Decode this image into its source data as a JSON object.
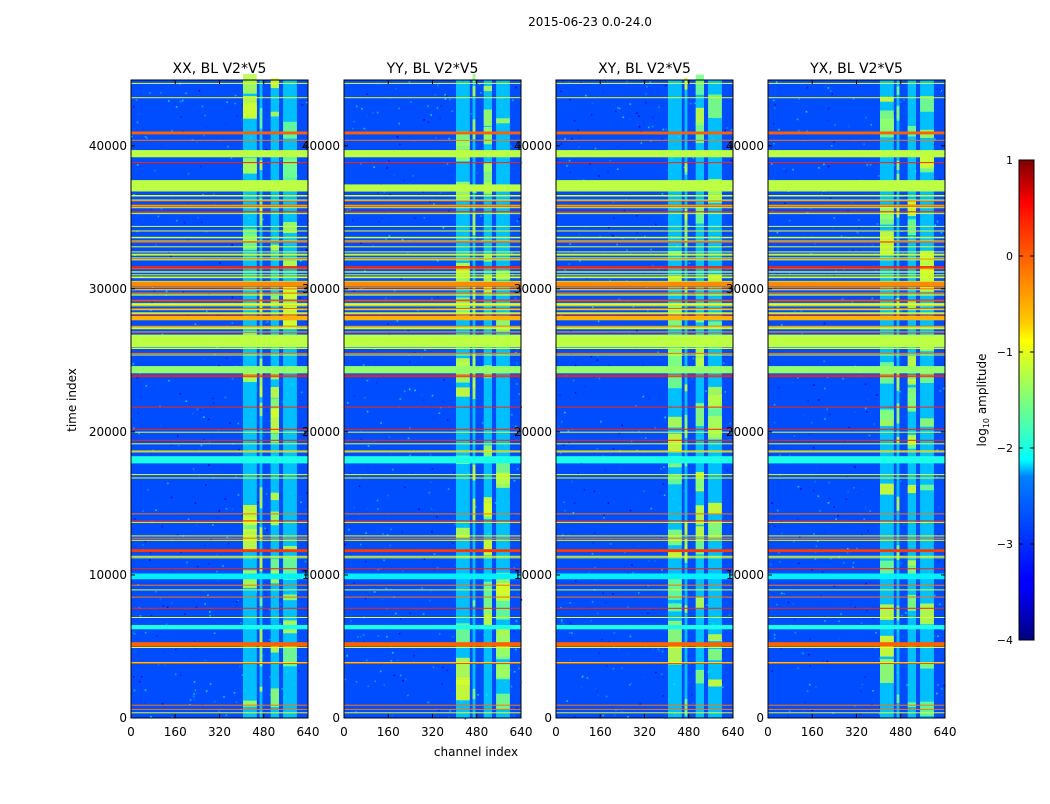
{
  "chart_data": {
    "type": "heatmap",
    "suptitle": "2015-06-23 0.0-24.0",
    "xlabel": "channel index",
    "ylabel": "time index",
    "xlim": [
      0,
      640
    ],
    "ylim": [
      0,
      44600
    ],
    "xticks": [
      0,
      160,
      320,
      480,
      640
    ],
    "yticks": [
      0,
      10000,
      20000,
      30000,
      40000
    ],
    "panels": [
      {
        "title": "XX, BL V2*V5"
      },
      {
        "title": "YY, BL V2*V5"
      },
      {
        "title": "XY, BL V2*V5"
      },
      {
        "title": "YX, BL V2*V5"
      }
    ],
    "colorbar": {
      "label": "log10 amplitude",
      "min": -4,
      "max": 1,
      "ticks": [
        -4,
        -3,
        -2,
        -1,
        0,
        1
      ],
      "colormap": "jet"
    },
    "rfi_channel_bands": [
      [
        405,
        455
      ],
      [
        465,
        475
      ],
      [
        505,
        535
      ],
      [
        550,
        600
      ]
    ],
    "flagged_time_bands": [
      {
        "t0": 36800,
        "t1": 37600,
        "level": -1.2
      },
      {
        "t0": 39200,
        "t1": 39700,
        "level": -1.2
      },
      {
        "t0": 25900,
        "t1": 26800,
        "level": -1.2
      },
      {
        "t0": 24100,
        "t1": 24600,
        "level": -1.4
      },
      {
        "t0": 17800,
        "t1": 18300,
        "level": -2.0
      },
      {
        "t0": 9700,
        "t1": 10100,
        "level": -2.2
      },
      {
        "t0": 6200,
        "t1": 6500,
        "level": -2.0
      },
      {
        "t0": 5000,
        "t1": 5300,
        "level": -0.1
      },
      {
        "t0": 40800,
        "t1": 41000,
        "level": -0.1
      },
      {
        "t0": 30200,
        "t1": 30500,
        "level": -0.3
      },
      {
        "t0": 27800,
        "t1": 28100,
        "level": -0.5
      },
      {
        "t0": 11600,
        "t1": 11800,
        "level": 0.1
      }
    ]
  }
}
